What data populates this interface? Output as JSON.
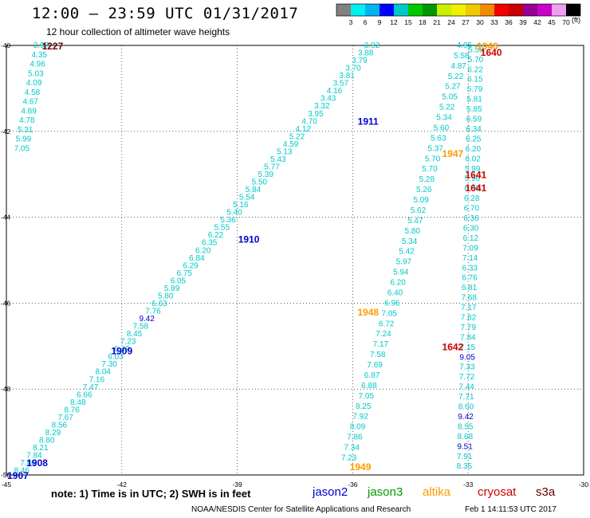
{
  "header": {
    "title": "12:00 – 23:59 UTC 01/31/2017",
    "subtitle": "12 hour collection of altimeter wave heights"
  },
  "footer": {
    "note": "note:  1) Time is in UTC;  2) SWH is in feet",
    "credit": "NOAA/NESDIS Center for Satellite Applications and Research",
    "timestamp": "Feb  1 14:11:53 UTC 2017"
  },
  "legend": [
    {
      "name": "jason2",
      "color": "#0000cc"
    },
    {
      "name": "jason3",
      "color": "#009900"
    },
    {
      "name": "altika",
      "color": "#ff9900"
    },
    {
      "name": "cryosat",
      "color": "#cc0000"
    },
    {
      "name": "s3a",
      "color": "#660000"
    }
  ],
  "colorbar": {
    "unit": "(ft)",
    "ticks": [
      "3",
      "6",
      "9",
      "12",
      "15",
      "18",
      "21",
      "24",
      "27",
      "30",
      "33",
      "36",
      "39",
      "42",
      "45",
      "70"
    ],
    "colors": [
      "#808080",
      "#00f0f0",
      "#00b4f0",
      "#0000ff",
      "#00c8c8",
      "#00c800",
      "#009600",
      "#c8f000",
      "#f0f000",
      "#f0c800",
      "#f08c00",
      "#f00000",
      "#c80000",
      "#960096",
      "#c800c8",
      "#f0a0f0",
      "#000000"
    ]
  },
  "chart_data": {
    "type": "scatter",
    "xlim": [
      -45,
      -30
    ],
    "ylim": [
      -50,
      -40
    ],
    "xticks": [
      -45,
      -42,
      -39,
      -36,
      -33,
      -30
    ],
    "yticks": [
      -40,
      -42,
      -44,
      -46,
      -48,
      -50
    ],
    "grid": true,
    "point_color": "#00c8c8",
    "tracks": [
      {
        "lon_start": -44.1,
        "lat_start": -40.0,
        "lon_end": -44.6,
        "lat_end": -42.4,
        "values": [
          "3.97",
          "4.35",
          "4.96",
          "5.03",
          "4.09",
          "4.58",
          "4.67",
          "4.89",
          "4.78",
          "5.31",
          "5.99",
          "7.05"
        ]
      },
      {
        "lon_start": -35.5,
        "lat_start": -40.0,
        "lon_end": -44.6,
        "lat_end": -49.9,
        "values": [
          "3.92",
          "3.88",
          "3.79",
          "3.70",
          "3.81",
          "3.57",
          "4.16",
          "3.43",
          "3.32",
          "3.95",
          "4.70",
          "4.12",
          "5.22",
          "4.59",
          "5.13",
          "5.43",
          "5.77",
          "5.39",
          "5.50",
          "5.84",
          "5.54",
          "5.16",
          "5.40",
          "5.36",
          "5.55",
          "6.22",
          "6.35",
          "6.20",
          "6.84",
          "6.29",
          "6.75",
          "6.05",
          "5.89",
          "5.80",
          "6.63",
          "7.76",
          "9.42",
          "7.58",
          "8.45",
          "7.23",
          "6.49",
          "6.03",
          "7.30",
          "8.04",
          "7.16",
          "7.47",
          "6.66",
          "8.48",
          "8.76",
          "7.67",
          "8.56",
          "8.29",
          "8.80",
          "8.21",
          "7.84",
          "7.86",
          "8.46"
        ]
      },
      {
        "lon_start": -33.1,
        "lat_start": -40.0,
        "lon_end": -36.1,
        "lat_end": -49.6,
        "values": [
          "4.95",
          "5.58",
          "4.87",
          "5.22",
          "5.27",
          "5.05",
          "5.22",
          "5.34",
          "5.60",
          "5.63",
          "5.37",
          "5.70",
          "5.70",
          "5.28",
          "5.26",
          "5.09",
          "5.62",
          "5.47",
          "5.80",
          "5.34",
          "5.42",
          "5.97",
          "5.94",
          "6.20",
          "6.40",
          "6.96",
          "7.05",
          "6.72",
          "7.24",
          "7.17",
          "7.58",
          "7.69",
          "6.87",
          "6.88",
          "7.05",
          "8.25",
          "7.92",
          "8.09",
          "7.86",
          "7.34",
          "7.23"
        ]
      },
      {
        "lon_start": -32.8,
        "lat_start": -40.1,
        "lon_end": -33.1,
        "lat_end": -49.8,
        "values": [
          "5.58",
          "5.70",
          "6.22",
          "6.15",
          "5.79",
          "5.81",
          "5.85",
          "6.59",
          "6.34",
          "6.25",
          "6.20",
          "6.02",
          "5.99",
          "5.96",
          "6.80",
          "6.28",
          "6.70",
          "6.36",
          "6.30",
          "6.12",
          "7.09",
          "7.14",
          "6.33",
          "6.76",
          "6.81",
          "7.68",
          "7.17",
          "7.82",
          "7.79",
          "7.84",
          "7.15",
          "9.05",
          "7.33",
          "7.72",
          "7.44",
          "7.71",
          "8.60",
          "9.42",
          "8.55",
          "8.68",
          "9.51",
          "7.91",
          "8.35"
        ]
      }
    ],
    "pass_labels": [
      {
        "text": "1227",
        "lon": -43.8,
        "lat": -40.0,
        "color": "#660000"
      },
      {
        "text": "1911",
        "lon": -35.6,
        "lat": -41.75,
        "color": "#0000cc"
      },
      {
        "text": "1910",
        "lon": -38.7,
        "lat": -44.5,
        "color": "#0000cc"
      },
      {
        "text": "1909",
        "lon": -42.0,
        "lat": -47.1,
        "color": "#0000cc"
      },
      {
        "text": "1908",
        "lon": -44.2,
        "lat": -49.7,
        "color": "#0000cc"
      },
      {
        "text": "1907",
        "lon": -44.7,
        "lat": -50.0,
        "color": "#0000cc"
      },
      {
        "text": "1946",
        "lon": -32.5,
        "lat": -40.0,
        "color": "#ff9900"
      },
      {
        "text": "1640",
        "lon": -32.4,
        "lat": -40.15,
        "color": "#cc0000"
      },
      {
        "text": "1947",
        "lon": -33.4,
        "lat": -42.5,
        "color": "#ff9900"
      },
      {
        "text": "1641",
        "lon": -32.8,
        "lat": -43.0,
        "color": "#cc0000"
      },
      {
        "text": "1641",
        "lon": -32.8,
        "lat": -43.3,
        "color": "#cc0000"
      },
      {
        "text": "1948",
        "lon": -35.6,
        "lat": -46.2,
        "color": "#ff9900"
      },
      {
        "text": "1642",
        "lon": -33.4,
        "lat": -47.0,
        "color": "#cc0000"
      },
      {
        "text": "1949",
        "lon": -35.8,
        "lat": -49.8,
        "color": "#ff9900"
      }
    ]
  }
}
